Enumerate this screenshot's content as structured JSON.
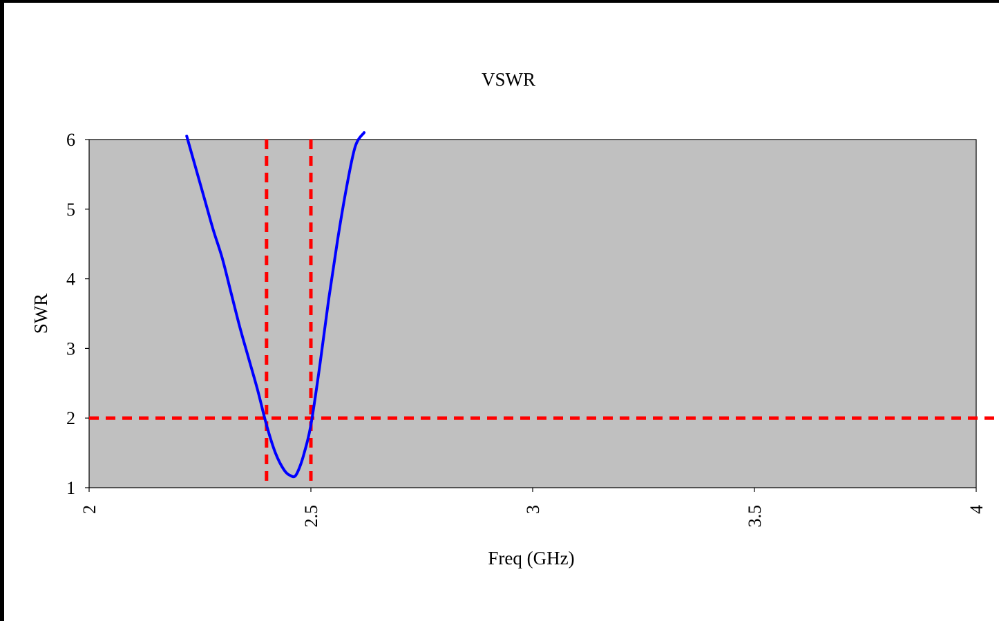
{
  "chart_data": {
    "type": "line",
    "title": "VSWR",
    "xlabel": "Freq (GHz)",
    "ylabel": "SWR",
    "xlim": [
      2,
      4
    ],
    "ylim": [
      1,
      6
    ],
    "xticks": [
      "2",
      "2.5",
      "3",
      "3.5",
      "4"
    ],
    "yticks": [
      "1",
      "2",
      "3",
      "4",
      "5",
      "6"
    ],
    "grid": false,
    "legend": "none",
    "plot_background": "#c0c0c0",
    "series": [
      {
        "color": "#0000ff",
        "x": [
          2.22,
          2.24,
          2.26,
          2.28,
          2.3,
          2.32,
          2.34,
          2.36,
          2.38,
          2.4,
          2.42,
          2.44,
          2.455,
          2.465,
          2.475,
          2.485,
          2.5,
          2.52,
          2.54,
          2.56,
          2.58,
          2.6,
          2.62
        ],
        "y": [
          6.05,
          5.6,
          5.15,
          4.7,
          4.3,
          3.8,
          3.3,
          2.85,
          2.4,
          1.9,
          1.5,
          1.25,
          1.17,
          1.17,
          1.3,
          1.5,
          1.9,
          2.75,
          3.7,
          4.55,
          5.3,
          5.9,
          6.1
        ]
      }
    ],
    "reference_lines": [
      {
        "orientation": "horizontal",
        "value": 2,
        "color": "#ff0000",
        "style": "dashed"
      },
      {
        "orientation": "vertical",
        "value": 2.4,
        "color": "#ff0000",
        "style": "dashed"
      },
      {
        "orientation": "vertical",
        "value": 2.5,
        "color": "#ff0000",
        "style": "dashed"
      }
    ]
  }
}
